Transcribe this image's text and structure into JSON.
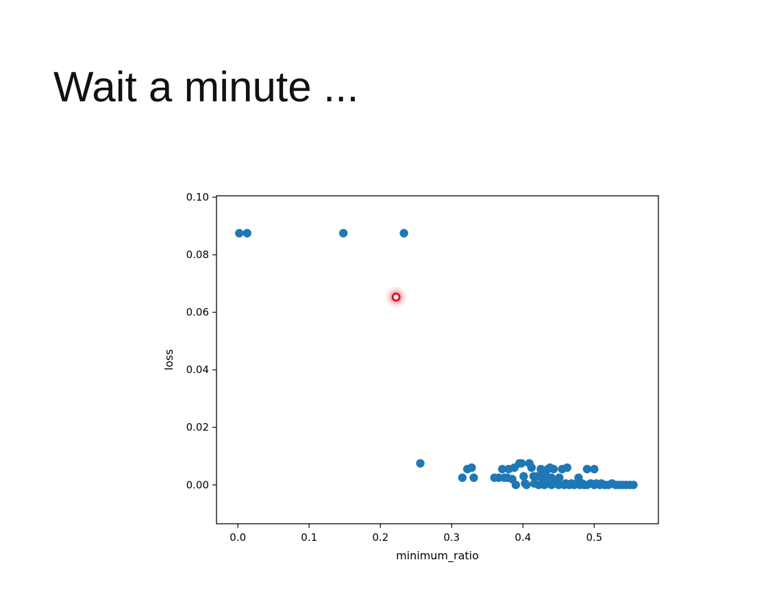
{
  "slide": {
    "title": "Wait a minute ..."
  },
  "chart_data": {
    "type": "scatter",
    "xlabel": "minimum_ratio",
    "ylabel": "loss",
    "xlim": [
      -0.03,
      0.59
    ],
    "ylim": [
      -0.0135,
      0.1005
    ],
    "xticks": [
      0.0,
      0.1,
      0.2,
      0.3,
      0.4,
      0.5
    ],
    "xtick_labels": [
      "0.0",
      "0.1",
      "0.2",
      "0.3",
      "0.4",
      "0.5"
    ],
    "yticks": [
      0.0,
      0.02,
      0.04,
      0.06,
      0.08,
      0.1
    ],
    "ytick_labels": [
      "0.00",
      "0.02",
      "0.04",
      "0.06",
      "0.08",
      "0.10"
    ],
    "grid": false,
    "legend": "none",
    "marker_color": "#1f77b4",
    "highlight_color": "#e0001b",
    "series": [
      {
        "x": [
          0.002,
          0.013,
          0.148,
          0.233,
          0.256,
          0.315,
          0.322,
          0.328,
          0.331,
          0.36,
          0.366,
          0.371,
          0.374,
          0.378,
          0.38,
          0.385,
          0.388,
          0.39,
          0.395,
          0.398,
          0.401,
          0.403,
          0.405,
          0.409,
          0.412,
          0.415,
          0.416,
          0.42,
          0.422,
          0.425,
          0.427,
          0.43,
          0.43,
          0.433,
          0.435,
          0.436,
          0.438,
          0.44,
          0.44,
          0.443,
          0.446,
          0.45,
          0.451,
          0.455,
          0.458,
          0.46,
          0.462,
          0.465,
          0.468,
          0.472,
          0.475,
          0.478,
          0.48,
          0.483,
          0.486,
          0.49,
          0.49,
          0.495,
          0.5,
          0.5,
          0.503,
          0.508,
          0.51,
          0.515,
          0.52,
          0.525,
          0.53,
          0.535,
          0.54,
          0.545,
          0.55,
          0.555
        ],
        "y": [
          0.0875,
          0.0875,
          0.0875,
          0.0875,
          0.0075,
          0.0025,
          0.0055,
          0.006,
          0.0025,
          0.0025,
          0.0025,
          0.0055,
          0.0025,
          0.0025,
          0.0055,
          0.002,
          0.006,
          0.0,
          0.0075,
          0.0075,
          0.003,
          0.0005,
          0.0,
          0.0075,
          0.006,
          0.003,
          0.0005,
          0.003,
          0.0,
          0.0055,
          0.0025,
          0.0,
          0.0045,
          0.003,
          0.0055,
          0.0005,
          0.006,
          0.0025,
          0.0,
          0.0055,
          0.0005,
          0.0,
          0.0025,
          0.0055,
          0.0,
          0.0005,
          0.006,
          0.0,
          0.0005,
          0.0,
          0.0005,
          0.0025,
          0.0,
          0.0005,
          0.0,
          0.0055,
          0.0,
          0.0005,
          0.0055,
          0.0,
          0.0005,
          0.0,
          0.0005,
          0.0,
          0.0,
          0.0005,
          0.0,
          0.0,
          0.0,
          0.0,
          0.0,
          0.0
        ]
      }
    ],
    "highlight": {
      "x": 0.222,
      "y": 0.0653
    }
  }
}
